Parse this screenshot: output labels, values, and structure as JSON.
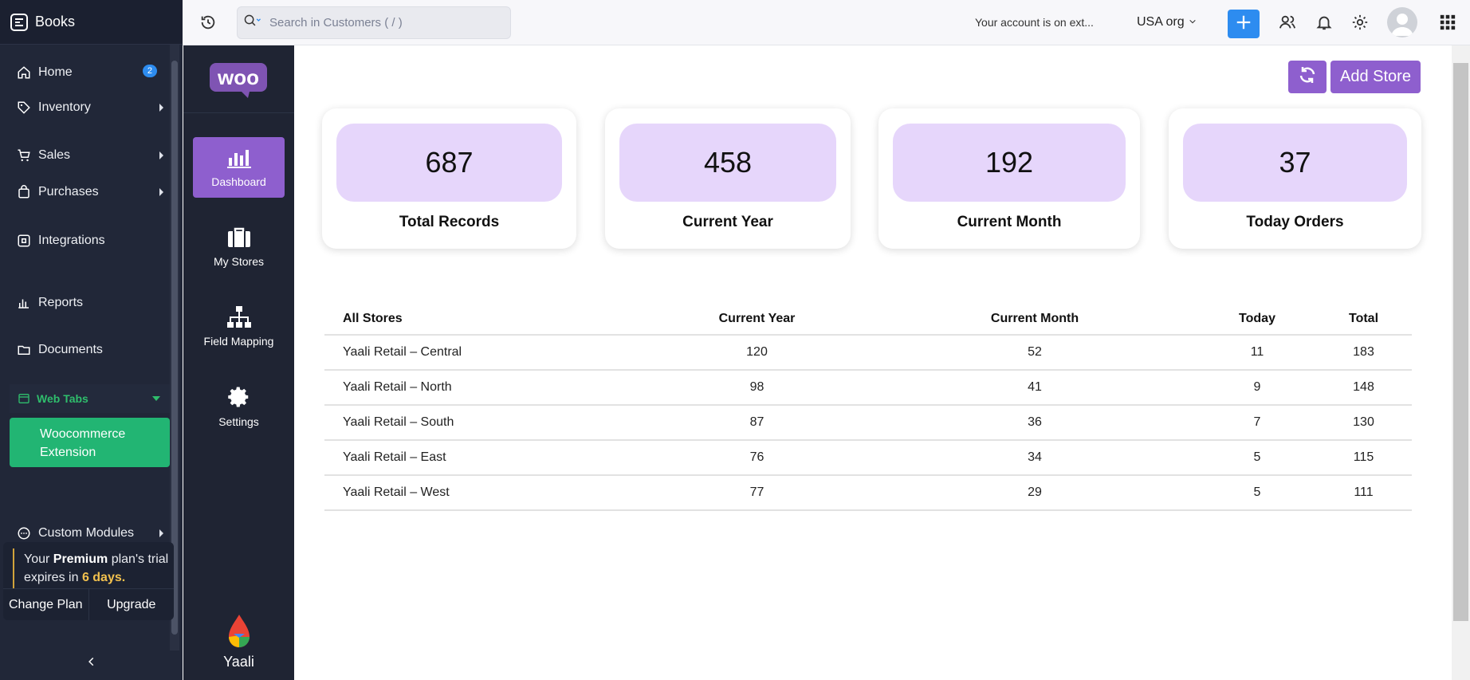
{
  "sidebar": {
    "brand": "Books",
    "items": [
      {
        "label": "Home",
        "badge": "2"
      },
      {
        "label": "Inventory"
      },
      {
        "label": "Sales"
      },
      {
        "label": "Purchases"
      },
      {
        "label": "Integrations"
      },
      {
        "label": "Reports"
      },
      {
        "label": "Documents"
      },
      {
        "label": "Custom Modules"
      }
    ],
    "web_tabs": "Web Tabs",
    "woo_item_line1": "Woocommerce",
    "woo_item_line2": "Extension",
    "trial": {
      "your": "Your",
      "plan": "Premium",
      "rest1": "plan's trial",
      "expires": "expires in",
      "days": "6 days.",
      "change_plan": "Change Plan",
      "upgrade": "Upgrade"
    }
  },
  "subbar": {
    "items": [
      {
        "label": "Dashboard"
      },
      {
        "label": "My Stores"
      },
      {
        "label": "Field Mapping"
      },
      {
        "label": "Settings"
      }
    ],
    "footer": "Yaali"
  },
  "topbar": {
    "search_placeholder": "Search in Customers ( / )",
    "account_notice": "Your account is on ext...",
    "org": "USA org"
  },
  "main": {
    "add_store": "Add Store",
    "cards": [
      {
        "value": "687",
        "label": "Total Records"
      },
      {
        "value": "458",
        "label": "Current Year"
      },
      {
        "value": "192",
        "label": "Current Month"
      },
      {
        "value": "37",
        "label": "Today Orders"
      }
    ],
    "table": {
      "headers": [
        "All Stores",
        "Current Year",
        "Current Month",
        "Today",
        "Total"
      ],
      "rows": [
        [
          "Yaali Retail – Central",
          "120",
          "52",
          "11",
          "183"
        ],
        [
          "Yaali Retail – North",
          "98",
          "41",
          "9",
          "148"
        ],
        [
          "Yaali Retail – South",
          "87",
          "36",
          "7",
          "130"
        ],
        [
          "Yaali Retail – East",
          "76",
          "34",
          "5",
          "115"
        ],
        [
          "Yaali Retail – West",
          "77",
          "29",
          "5",
          "111"
        ]
      ]
    }
  },
  "colors": {
    "sidebar_bg": "#212738",
    "accent_purple": "#8e5fce",
    "card_pill": "#e6d6fb",
    "active_green": "#22b573",
    "primary_blue": "#2d8cf0"
  }
}
